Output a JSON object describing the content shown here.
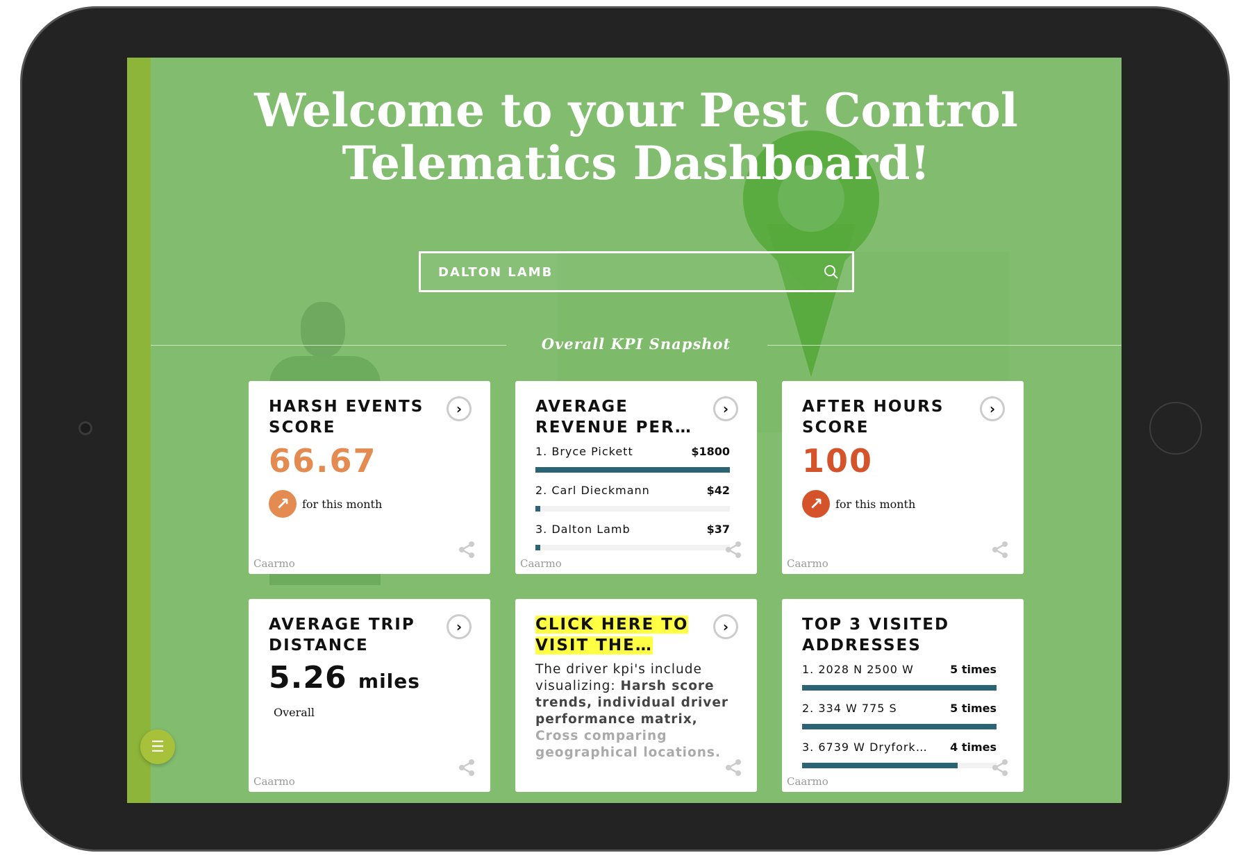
{
  "header": {
    "title": "Welcome to your Pest Control Telematics Dashboard!"
  },
  "search": {
    "value": "DALTON LAMB",
    "icon": "search-icon"
  },
  "section_title": "Overall KPI Snapshot",
  "colors": {
    "background": "#82bd6f",
    "accent_orange": "#e38b50",
    "accent_red": "#d4532a",
    "bar": "#2b6474",
    "highlight": "#ffff44"
  },
  "cards": [
    {
      "title": "HARSH EVENTS SCORE",
      "value": "66.67",
      "trend": "for this month",
      "brand": "Caarmo"
    },
    {
      "title": "AVERAGE REVENUE PER…",
      "brand": "Caarmo",
      "items": [
        {
          "label": "1. Bryce Pickett",
          "value": "$1800",
          "fraction": 1.0
        },
        {
          "label": "2. Carl Dieckmann",
          "value": "$42",
          "fraction": 0.023
        },
        {
          "label": "3. Dalton Lamb",
          "value": "$37",
          "fraction": 0.021
        }
      ]
    },
    {
      "title": "AFTER HOURS SCORE",
      "value": "100",
      "trend": "for this month",
      "brand": "Caarmo"
    },
    {
      "title": "AVERAGE TRIP DISTANCE",
      "value": "5.26",
      "unit": "miles",
      "subtitle": "Overall",
      "brand": "Caarmo"
    },
    {
      "title": "CLICK HERE TO VISIT THE…",
      "body_1": "The driver kpi's include visualizing: ",
      "body_2": "Harsh score trends, individual driver performance matrix, ",
      "body_3": "Cross comparing geographical locations."
    },
    {
      "title": "TOP 3 VISITED ADDRESSES",
      "brand": "Caarmo",
      "items": [
        {
          "label": "1. 2028 N 2500 W",
          "value": "5 times",
          "fraction": 1.0
        },
        {
          "label": "2. 334 W 775 S",
          "value": "5 times",
          "fraction": 1.0
        },
        {
          "label": "3. 6739 W Dryfork…",
          "value": "4 times",
          "fraction": 0.8
        }
      ]
    }
  ]
}
